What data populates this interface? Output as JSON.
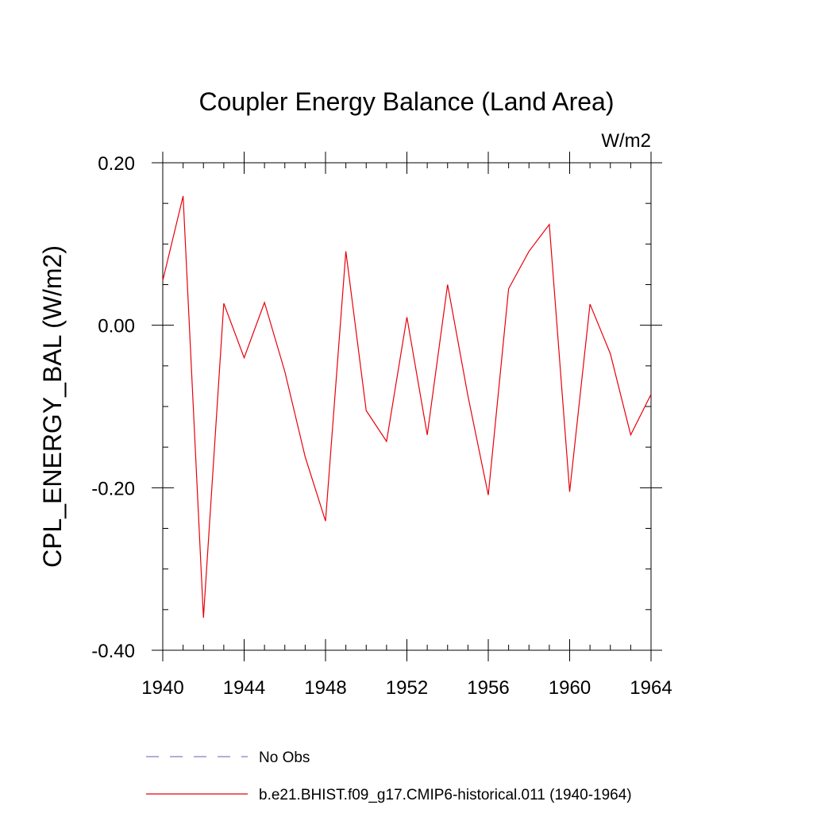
{
  "chart_data": {
    "type": "line",
    "title": "Coupler Energy Balance (Land Area)",
    "units_label": "W/m2",
    "ylabel": "CPL_ENERGY_BAL  (W/m2)",
    "xlim": [
      1940,
      1964
    ],
    "ylim": [
      -0.4,
      0.2
    ],
    "x_ticks": [
      1940,
      1944,
      1948,
      1952,
      1956,
      1960,
      1964
    ],
    "x_tick_labels": [
      "1940",
      "1944",
      "1948",
      "1952",
      "1956",
      "1960",
      "1964"
    ],
    "y_ticks": [
      -0.4,
      -0.2,
      0.0,
      0.2
    ],
    "y_tick_labels": [
      "-0.40",
      "-0.20",
      "0.00",
      "0.20"
    ],
    "y_minor_step": 0.05,
    "x_minor_step": 1,
    "grid": false,
    "legend_placement": "bottom",
    "series": [
      {
        "name": "No Obs",
        "color": "#7f7fbf",
        "dash": true,
        "x": [],
        "values": []
      },
      {
        "name": "b.e21.BHIST.f09_g17.CMIP6-historical.011 (1940-1964)",
        "color": "#e8000b",
        "dash": false,
        "x": [
          1940,
          1941,
          1942,
          1943,
          1944,
          1945,
          1946,
          1947,
          1948,
          1949,
          1950,
          1951,
          1952,
          1953,
          1954,
          1955,
          1956,
          1957,
          1958,
          1959,
          1960,
          1961,
          1962,
          1963,
          1964
        ],
        "values": [
          0.055,
          0.159,
          -0.36,
          0.027,
          -0.04,
          0.028,
          -0.057,
          -0.162,
          -0.241,
          0.091,
          -0.105,
          -0.143,
          0.01,
          -0.135,
          0.05,
          -0.087,
          -0.209,
          0.045,
          0.091,
          0.124,
          -0.205,
          0.026,
          -0.035,
          -0.135,
          -0.085
        ]
      }
    ]
  }
}
